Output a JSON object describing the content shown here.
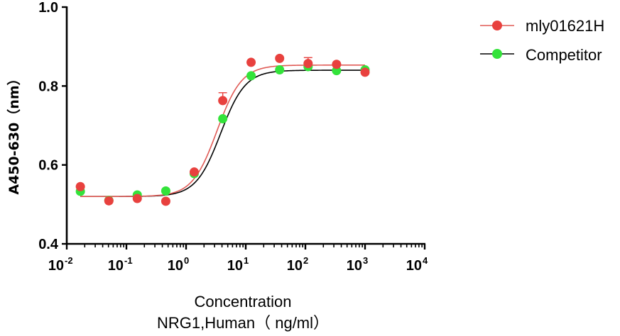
{
  "chart_data": {
    "type": "scatter",
    "title": "",
    "xscale": "log",
    "xlim": [
      0.01,
      10000
    ],
    "ylim": [
      0.4,
      1.0
    ],
    "x_ticks": [
      {
        "base": "10",
        "exp": "-2",
        "value": 0.01
      },
      {
        "base": "10",
        "exp": "-1",
        "value": 0.1
      },
      {
        "base": "10",
        "exp": "0",
        "value": 1
      },
      {
        "base": "10",
        "exp": "1",
        "value": 10
      },
      {
        "base": "10",
        "exp": "2",
        "value": 100
      },
      {
        "base": "10",
        "exp": "3",
        "value": 1000
      },
      {
        "base": "10",
        "exp": "4",
        "value": 10000
      }
    ],
    "y_ticks": [
      {
        "label": "0.4",
        "value": 0.4
      },
      {
        "label": "0.6",
        "value": 0.6
      },
      {
        "label": "0.8",
        "value": 0.8
      },
      {
        "label": "1.0",
        "value": 1.0
      }
    ],
    "xlabel_line1": "Concentration",
    "xlabel_line2": "NRG1,Human（ ng/ml）",
    "ylabel": "A450-630（nm）",
    "legend_position": "top-right",
    "series": [
      {
        "name": "mly01621H",
        "color": "#e8413e",
        "line_color": "#e05a55",
        "x": [
          0.0169,
          0.0508,
          0.152,
          0.457,
          1.37,
          4.12,
          12.3,
          37.0,
          111,
          333,
          1000
        ],
        "y": [
          0.545,
          0.509,
          0.515,
          0.508,
          0.582,
          0.763,
          0.86,
          0.87,
          0.857,
          0.855,
          0.835
        ],
        "error": [
          0,
          0,
          0,
          0,
          0,
          0.02,
          0,
          0,
          0.015,
          0,
          0
        ],
        "fit": {
          "bottom": 0.52,
          "top": 0.853,
          "ec50": 3.3,
          "hill": 2.1
        }
      },
      {
        "name": "Competitor",
        "color": "#33e33a",
        "line_color": "#000000",
        "x": [
          0.0169,
          0.0508,
          0.152,
          0.457,
          1.37,
          4.12,
          12.3,
          37.0,
          111,
          333,
          1000
        ],
        "y": [
          0.533,
          0.51,
          0.524,
          0.534,
          0.578,
          0.717,
          0.826,
          0.841,
          0.849,
          0.839,
          0.841
        ],
        "error": [
          0,
          0,
          0,
          0,
          0,
          0,
          0,
          0,
          0,
          0,
          0
        ],
        "fit": {
          "bottom": 0.52,
          "top": 0.84,
          "ec50": 3.8,
          "hill": 2.1
        }
      }
    ]
  }
}
